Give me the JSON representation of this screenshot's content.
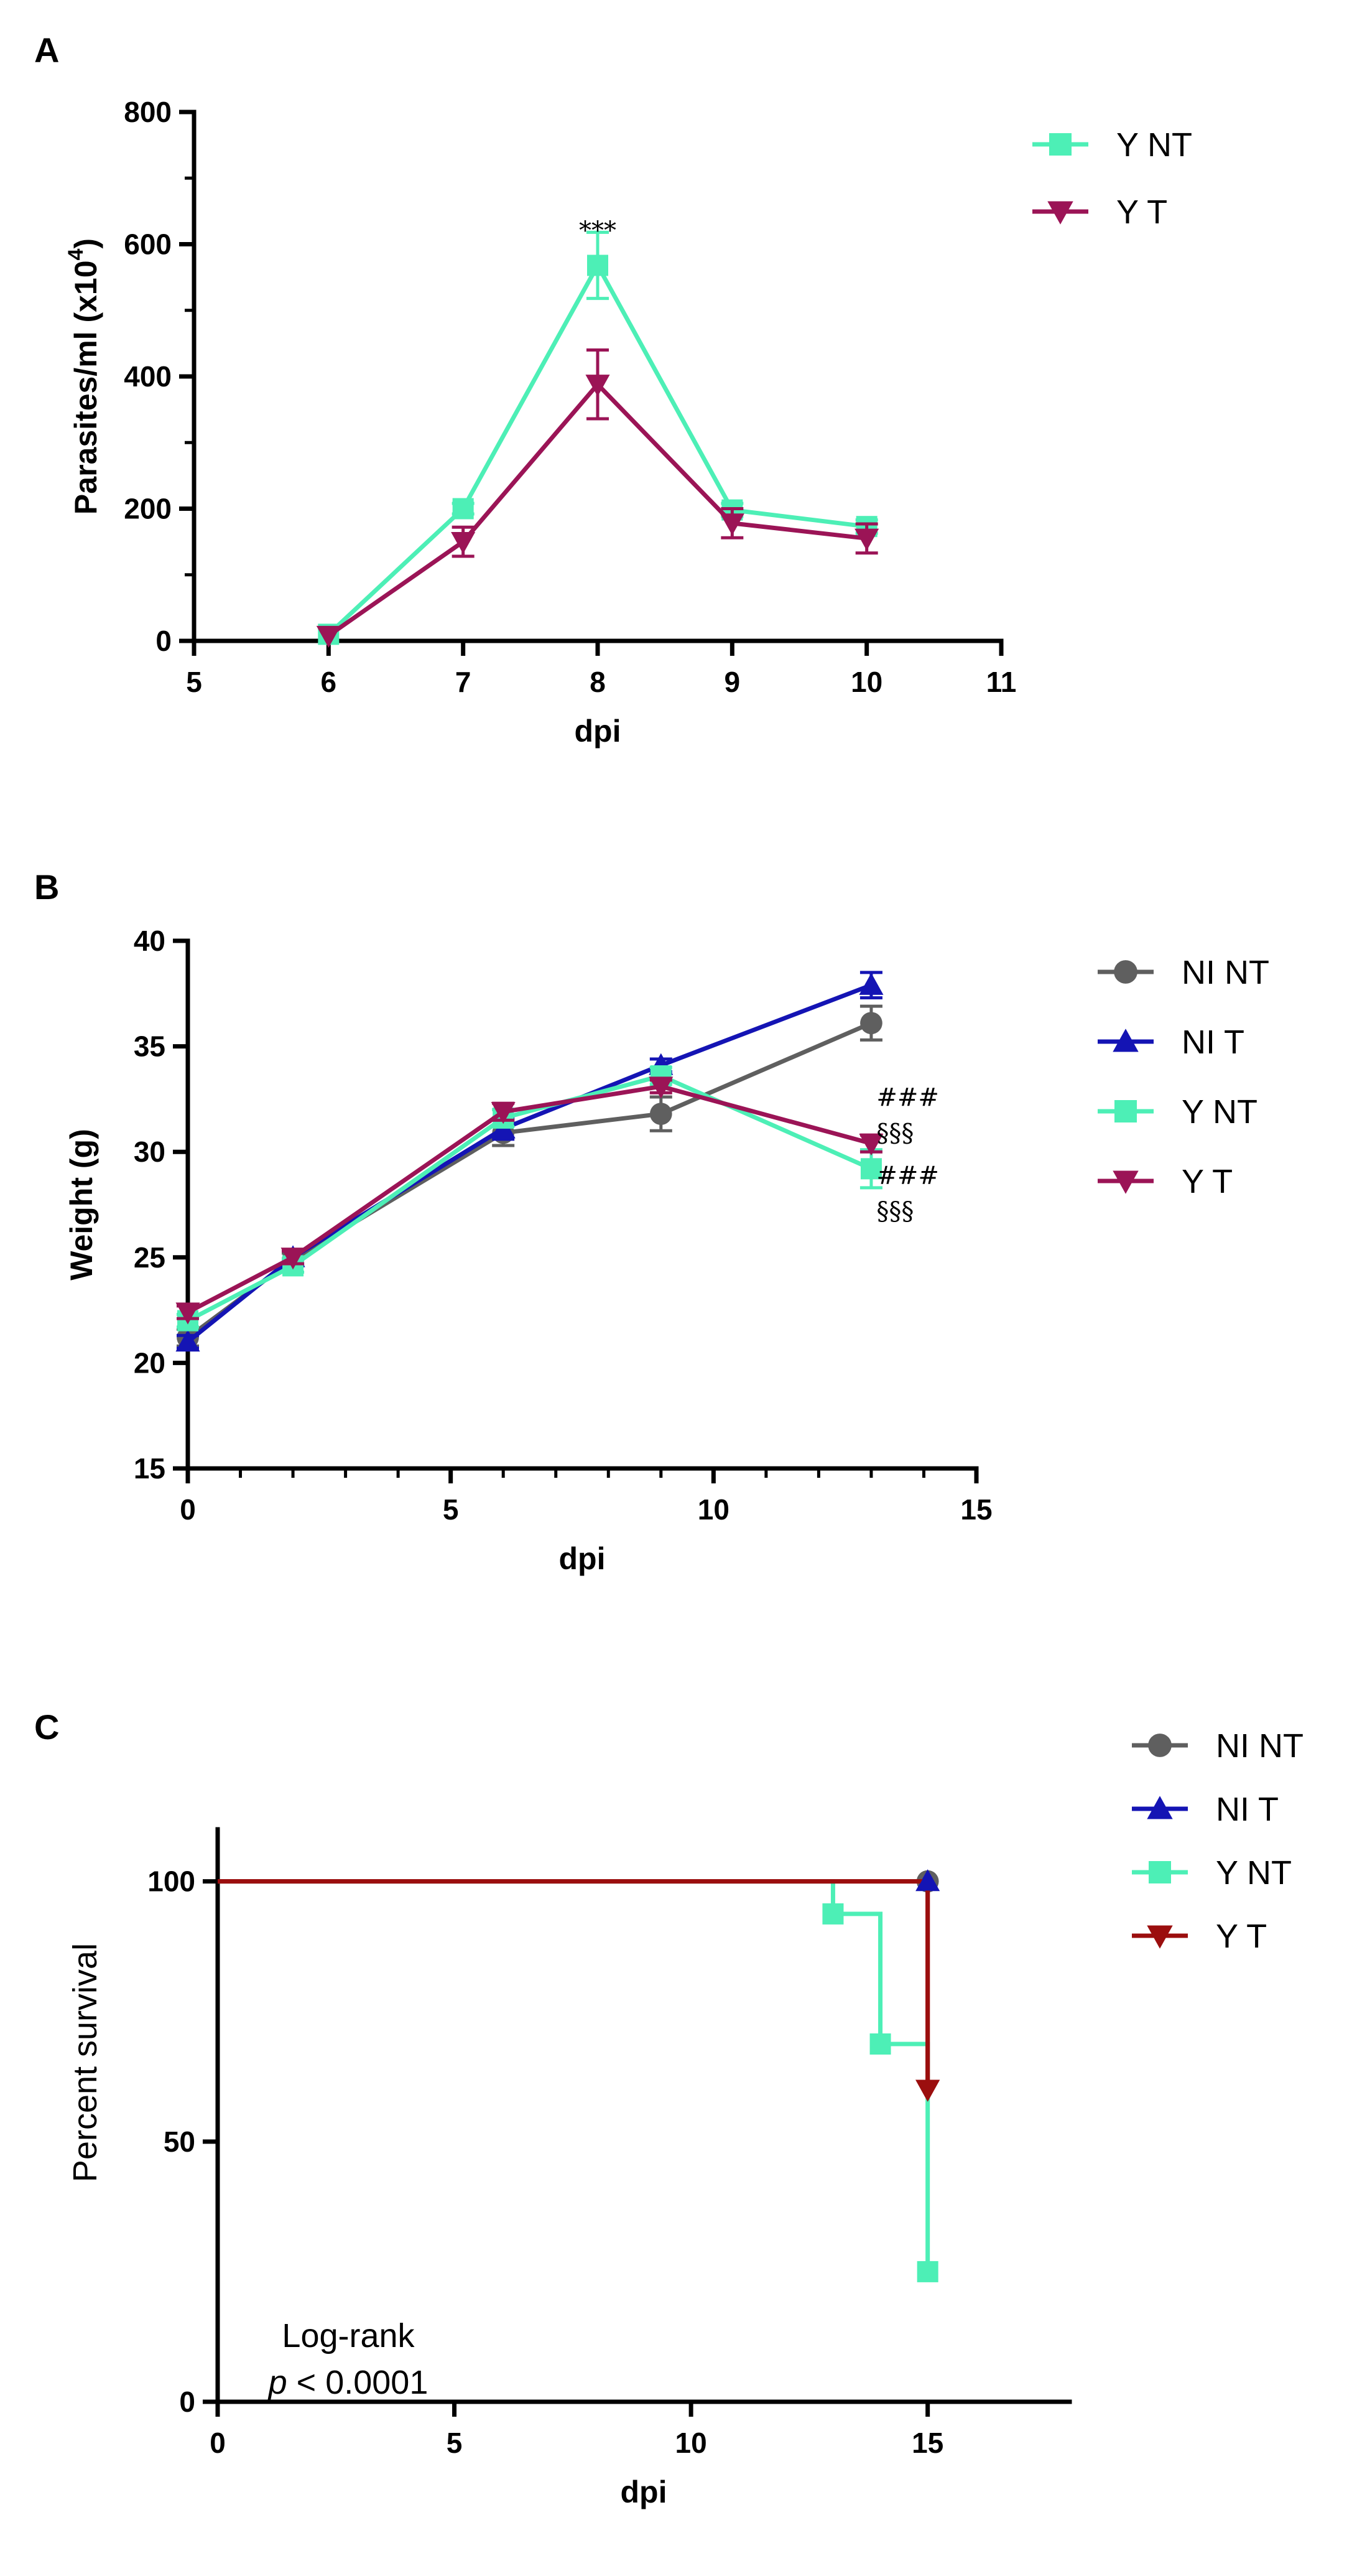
{
  "colors": {
    "Y NT": "#4DEFB6",
    "Y T": "#9B1456",
    "NI NT": "#5F5F5F",
    "NI T": "#1414B4",
    "Y T survival": "#9B0E0E"
  },
  "chart_data": [
    {
      "panel": "A",
      "type": "line",
      "xlabel": "dpi",
      "ylabel": "Parasites/ml (x10",
      "ylabel_sup": "4",
      "ylabel_end": ")",
      "xlim": [
        5,
        11
      ],
      "ylim": [
        0,
        800
      ],
      "xticks": [
        5,
        6,
        7,
        8,
        9,
        10,
        11
      ],
      "yticks": [
        0,
        200,
        400,
        600,
        800
      ],
      "legend_position": "top-right",
      "series": [
        {
          "name": "Y NT",
          "marker": "square",
          "x": [
            6,
            7,
            8,
            9,
            10
          ],
          "y": [
            10,
            200,
            568,
            198,
            173
          ],
          "err": [
            0,
            8,
            50,
            10,
            10
          ]
        },
        {
          "name": "Y T",
          "marker": "triangle-down",
          "x": [
            6,
            7,
            8,
            9,
            10
          ],
          "y": [
            8,
            150,
            388,
            178,
            155
          ],
          "err": [
            0,
            22,
            52,
            22,
            22
          ]
        }
      ],
      "annotations": [
        {
          "text": "***",
          "x": 8,
          "y": 625
        }
      ]
    },
    {
      "panel": "B",
      "type": "line",
      "xlabel": "dpi",
      "ylabel": "Weight (g)",
      "xlim": [
        0,
        15
      ],
      "ylim": [
        15,
        40
      ],
      "xticks": [
        0,
        5,
        10,
        15
      ],
      "yticks": [
        15,
        20,
        25,
        30,
        35,
        40
      ],
      "legend_position": "right",
      "series": [
        {
          "name": "NI NT",
          "marker": "circle",
          "x": [
            0,
            2,
            6,
            9,
            13
          ],
          "y": [
            21.2,
            24.9,
            30.9,
            31.8,
            36.1
          ],
          "err": [
            0.4,
            0.3,
            0.6,
            0.8,
            0.8
          ]
        },
        {
          "name": "NI T",
          "marker": "triangle-up",
          "x": [
            0,
            2,
            6,
            9,
            13
          ],
          "y": [
            21.0,
            25.0,
            31.1,
            34.1,
            37.9
          ],
          "err": [
            0.3,
            0.3,
            0.5,
            0.3,
            0.6
          ]
        },
        {
          "name": "Y NT",
          "marker": "square",
          "x": [
            0,
            2,
            6,
            9,
            13
          ],
          "y": [
            22.0,
            24.6,
            31.6,
            33.6,
            29.2
          ],
          "err": [
            0.3,
            0.3,
            0.4,
            0.4,
            0.9
          ]
        },
        {
          "name": "Y T",
          "marker": "triangle-down",
          "x": [
            0,
            2,
            6,
            9,
            13
          ],
          "y": [
            22.4,
            25.0,
            31.9,
            33.1,
            30.4
          ],
          "err": [
            0.3,
            0.3,
            0.4,
            0.3,
            0.4
          ]
        }
      ],
      "annotations": [
        {
          "text": "###",
          "x": 13.1,
          "y": 32.6
        },
        {
          "text": "§§§",
          "x": 13.1,
          "y": 30.9
        },
        {
          "text": "###",
          "x": 13.1,
          "y": 28.9
        },
        {
          "text": "§§§",
          "x": 13.1,
          "y": 27.2
        }
      ]
    },
    {
      "panel": "C",
      "type": "line",
      "subtype": "survival-step",
      "xlabel": "dpi",
      "ylabel": "Percent survival",
      "xlim": [
        0,
        18
      ],
      "ylim": [
        0,
        110
      ],
      "xticks": [
        0,
        5,
        10,
        15
      ],
      "yticks": [
        0,
        50,
        100
      ],
      "legend_position": "right",
      "series": [
        {
          "name": "NI NT",
          "marker": "circle",
          "x": [
            0,
            15
          ],
          "y": [
            100,
            100
          ]
        },
        {
          "name": "NI T",
          "marker": "triangle-up",
          "x": [
            0,
            15
          ],
          "y": [
            100,
            100
          ]
        },
        {
          "name": "Y NT",
          "marker": "square",
          "x": [
            0,
            13,
            14,
            15
          ],
          "y": [
            100,
            93.75,
            68.75,
            25
          ]
        },
        {
          "name": "Y T",
          "marker": "triangle-down",
          "x": [
            0,
            15
          ],
          "y": [
            100,
            60
          ]
        }
      ],
      "stat_text": {
        "line1": "Log-rank",
        "line2_p": "p",
        "line2_rest": " < 0.0001"
      }
    }
  ]
}
